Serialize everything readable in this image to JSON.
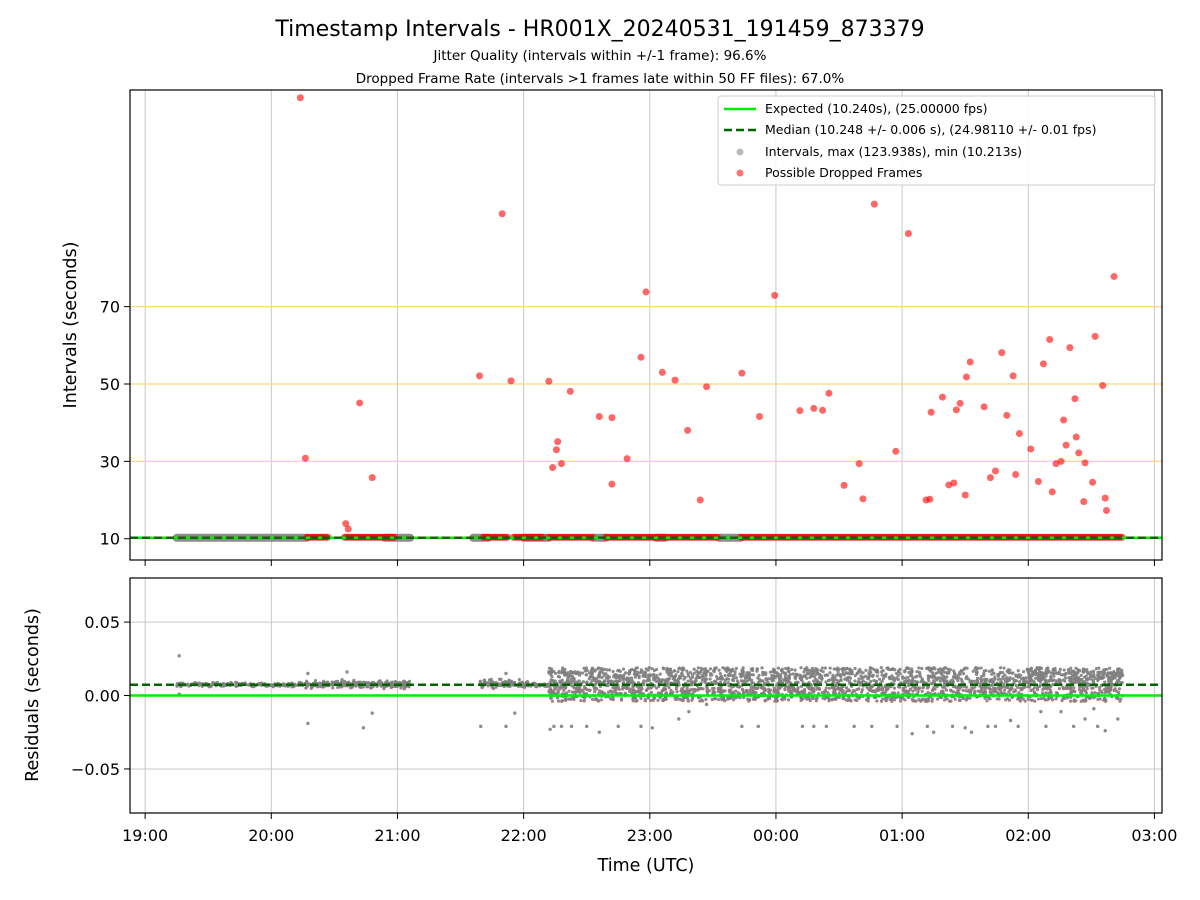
{
  "title": "Timestamp Intervals - HR001X_20240531_191459_873379",
  "subtitle_1": "Jitter Quality (intervals within +/-1 frame): 96.6%",
  "subtitle_2": "Dropped Frame Rate (intervals >1 frames late within 50 FF files): 67.0%",
  "colors": {
    "expected": "#00ee00",
    "median": "#006400",
    "intervals": "#808080",
    "dropped": "#ff0000",
    "threshold": "#ffd87a",
    "grid": "#c8c8c8"
  },
  "chart_data": [
    {
      "type": "scatter",
      "ylabel": "Intervals (seconds)",
      "ylim": [
        4.5,
        126.0
      ],
      "xlim_hours": [
        18.88,
        27.06
      ],
      "yticks": [
        10,
        30,
        50,
        70
      ],
      "ytick_labels": [
        "10",
        "30",
        "50",
        "70"
      ],
      "grid": "vertical",
      "threshold_lines": [
        30,
        50,
        70
      ],
      "legend_position": "top-right",
      "legend": [
        {
          "label": "Expected (10.240s), (25.00000 fps)",
          "kind": "line-solid"
        },
        {
          "label": "Median (10.248 +/- 0.006 s), (24.98110 +/- 0.01 fps)",
          "kind": "line-dashed"
        },
        {
          "label": "Intervals, max (123.938s), min (10.213s)",
          "kind": "dot-grey"
        },
        {
          "label": "Possible Dropped Frames",
          "kind": "dot-red"
        }
      ],
      "expected": 10.24,
      "median": 10.248,
      "interval_runs": [
        [
          19.25,
          20.28
        ],
        [
          20.9,
          21.1
        ],
        [
          21.6,
          21.72
        ],
        [
          22.0,
          22.2
        ],
        [
          22.55,
          22.65
        ],
        [
          23.05,
          23.12
        ],
        [
          23.55,
          23.72
        ]
      ],
      "dropped_frames": [
        [
          20.23,
          124.0
        ],
        [
          20.27,
          30.8
        ],
        [
          20.59,
          13.9
        ],
        [
          20.61,
          12.5
        ],
        [
          20.7,
          45.1
        ],
        [
          20.8,
          25.8
        ],
        [
          21.65,
          52.1
        ],
        [
          21.83,
          94.0
        ],
        [
          21.9,
          50.8
        ],
        [
          22.2,
          50.7
        ],
        [
          22.23,
          28.4
        ],
        [
          22.26,
          33.0
        ],
        [
          22.27,
          35.1
        ],
        [
          22.3,
          29.4
        ],
        [
          22.37,
          48.1
        ],
        [
          22.6,
          41.6
        ],
        [
          22.7,
          41.3
        ],
        [
          22.7,
          24.1
        ],
        [
          22.82,
          30.7
        ],
        [
          22.93,
          56.9
        ],
        [
          22.97,
          73.8
        ],
        [
          23.1,
          53.0
        ],
        [
          23.2,
          51.0
        ],
        [
          23.3,
          38.0
        ],
        [
          23.4,
          20.0
        ],
        [
          23.45,
          49.3
        ],
        [
          23.73,
          52.8
        ],
        [
          23.87,
          41.6
        ],
        [
          23.99,
          72.9
        ],
        [
          24.19,
          43.1
        ],
        [
          24.3,
          43.7
        ],
        [
          24.37,
          43.2
        ],
        [
          24.42,
          47.6
        ],
        [
          24.54,
          23.8
        ],
        [
          24.66,
          29.4
        ],
        [
          24.69,
          20.3
        ],
        [
          24.78,
          96.5
        ],
        [
          24.95,
          32.6
        ],
        [
          25.05,
          88.9
        ],
        [
          25.19,
          20.0
        ],
        [
          25.22,
          20.2
        ],
        [
          25.23,
          42.7
        ],
        [
          25.32,
          46.6
        ],
        [
          25.37,
          23.9
        ],
        [
          25.41,
          24.4
        ],
        [
          25.43,
          43.3
        ],
        [
          25.46,
          45.0
        ],
        [
          25.5,
          21.3
        ],
        [
          25.51,
          51.8
        ],
        [
          25.54,
          55.7
        ],
        [
          25.65,
          44.1
        ],
        [
          25.7,
          25.8
        ],
        [
          25.74,
          27.5
        ],
        [
          25.79,
          58.1
        ],
        [
          25.83,
          41.9
        ],
        [
          25.88,
          52.1
        ],
        [
          25.9,
          26.6
        ],
        [
          25.93,
          37.2
        ],
        [
          26.02,
          33.2
        ],
        [
          26.08,
          24.8
        ],
        [
          26.12,
          55.2
        ],
        [
          26.17,
          61.5
        ],
        [
          26.19,
          22.1
        ],
        [
          26.22,
          29.4
        ],
        [
          26.26,
          30.0
        ],
        [
          26.28,
          40.7
        ],
        [
          26.3,
          34.2
        ],
        [
          26.33,
          59.4
        ],
        [
          26.37,
          46.2
        ],
        [
          26.38,
          36.3
        ],
        [
          26.4,
          32.2
        ],
        [
          26.44,
          19.6
        ],
        [
          26.45,
          29.6
        ],
        [
          26.51,
          24.6
        ],
        [
          26.53,
          62.3
        ],
        [
          26.59,
          49.6
        ],
        [
          26.61,
          20.5
        ],
        [
          26.62,
          17.3
        ],
        [
          26.68,
          77.8
        ]
      ],
      "dropped_near_expected_runs": [
        [
          20.28,
          20.45
        ],
        [
          20.58,
          20.98
        ],
        [
          21.68,
          21.88
        ],
        [
          21.92,
          22.15
        ],
        [
          22.2,
          22.55
        ],
        [
          22.65,
          23.55
        ],
        [
          23.72,
          26.75
        ]
      ]
    },
    {
      "type": "scatter",
      "xlabel": "Time (UTC)",
      "ylabel": "Residuals (seconds)",
      "ylim": [
        -0.08,
        0.08
      ],
      "xlim_hours": [
        18.88,
        27.06
      ],
      "yticks": [
        -0.05,
        0.0,
        0.05
      ],
      "ytick_labels": [
        "−0.05",
        "0.00",
        "0.05"
      ],
      "xticks_hours": [
        19,
        20,
        21,
        22,
        23,
        24,
        25,
        26,
        27
      ],
      "xtick_labels": [
        "19:00",
        "20:00",
        "21:00",
        "22:00",
        "23:00",
        "00:00",
        "01:00",
        "02:00",
        "03:00"
      ],
      "grid": "both",
      "expected_residual": 0.0,
      "median_residual": 0.0073,
      "residual_runs": [
        {
          "start": 19.25,
          "end": 20.25,
          "center": 0.0074,
          "spread": 0.0012,
          "count": 220
        },
        {
          "start": 20.27,
          "end": 21.1,
          "center": 0.0076,
          "spread": 0.0022,
          "count": 260
        },
        {
          "start": 21.65,
          "end": 22.05,
          "center": 0.0076,
          "spread": 0.0025,
          "count": 110
        },
        {
          "start": 22.05,
          "end": 22.2,
          "center": 0.0072,
          "spread": 0.0012,
          "count": 40
        },
        {
          "start": 22.2,
          "end": 26.75,
          "center": 0.0075,
          "spread": 0.0115,
          "count": 2600
        }
      ],
      "residual_outliers": [
        [
          19.27,
          0.027
        ],
        [
          19.27,
          0.001
        ],
        [
          20.29,
          0.015
        ],
        [
          20.29,
          -0.019
        ],
        [
          20.6,
          0.016
        ],
        [
          20.73,
          -0.022
        ],
        [
          20.8,
          -0.012
        ],
        [
          21.66,
          -0.021
        ],
        [
          21.86,
          -0.021
        ],
        [
          21.86,
          0.015
        ],
        [
          21.93,
          -0.012
        ],
        [
          22.21,
          -0.023
        ],
        [
          22.24,
          -0.021
        ],
        [
          22.3,
          -0.021
        ],
        [
          22.38,
          -0.021
        ],
        [
          22.5,
          -0.021
        ],
        [
          22.6,
          -0.025
        ],
        [
          22.75,
          -0.021
        ],
        [
          22.93,
          -0.021
        ],
        [
          23.02,
          -0.022
        ],
        [
          23.23,
          -0.016
        ],
        [
          23.31,
          -0.011
        ],
        [
          23.45,
          -0.006
        ],
        [
          23.73,
          -0.021
        ],
        [
          23.86,
          -0.021
        ],
        [
          24.21,
          -0.021
        ],
        [
          24.3,
          -0.021
        ],
        [
          24.4,
          -0.021
        ],
        [
          24.62,
          -0.021
        ],
        [
          24.76,
          -0.021
        ],
        [
          24.96,
          -0.021
        ],
        [
          25.08,
          -0.026
        ],
        [
          25.2,
          -0.021
        ],
        [
          25.25,
          -0.025
        ],
        [
          25.4,
          -0.021
        ],
        [
          25.5,
          -0.022
        ],
        [
          25.55,
          -0.025
        ],
        [
          25.68,
          -0.021
        ],
        [
          25.74,
          -0.021
        ],
        [
          25.86,
          -0.017
        ],
        [
          25.92,
          -0.021
        ],
        [
          26.1,
          -0.011
        ],
        [
          26.14,
          -0.021
        ],
        [
          26.26,
          -0.011
        ],
        [
          26.36,
          -0.021
        ],
        [
          26.45,
          -0.016
        ],
        [
          26.55,
          -0.021
        ],
        [
          26.61,
          -0.024
        ],
        [
          26.71,
          -0.016
        ],
        [
          26.52,
          -0.009
        ]
      ]
    }
  ]
}
